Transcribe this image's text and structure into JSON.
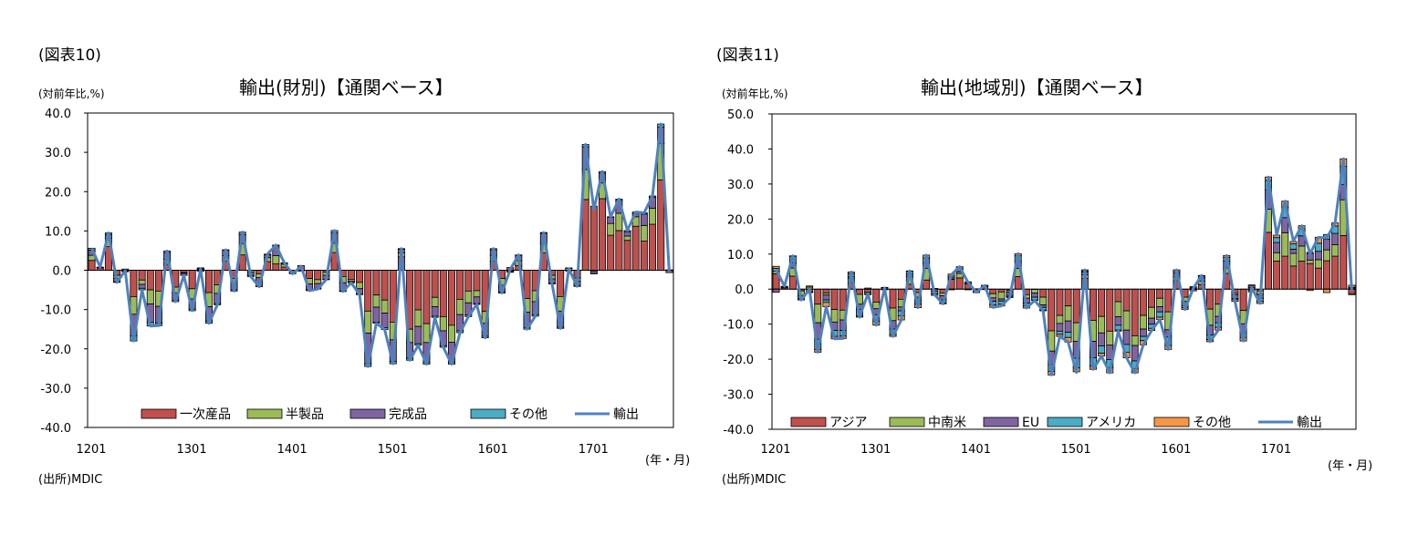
{
  "charts": [
    {
      "fig_label": "(図表10)",
      "title": "輸出(財別)【通関ベース】",
      "y_unit": "(対前年比,%)",
      "x_unit": "(年・月)",
      "source": "(出所)MDIC"
    },
    {
      "fig_label": "(図表11)",
      "title": "輸出(地域別)【通関ベース】",
      "y_unit": "(対前年比,%)",
      "x_unit": "(年・月)",
      "source": "(出所)MDIC"
    }
  ],
  "chart_data": [
    {
      "type": "bar",
      "stacked": true,
      "title": "輸出(財別)【通関ベース】",
      "ylabel": "(対前年比,%)",
      "xlabel": "(年・月)",
      "ylim": [
        -40,
        40
      ],
      "yticks": [
        40,
        30,
        20,
        10,
        0,
        -10,
        -20,
        -30,
        -40
      ],
      "ytick_labels": [
        "40.0",
        "30.0",
        "20.0",
        "10.0",
        "0.0",
        "-10.0",
        "-20.0",
        "-30.0",
        "-40.0"
      ],
      "xtick_labels": [
        "1201",
        "1301",
        "1401",
        "1501",
        "1601",
        "1701"
      ],
      "xtick_every": 12,
      "legend_position": "bottom",
      "colors": {
        "一次産品": "#C0504D",
        "半製品": "#9BBB59",
        "完成品": "#8064A2",
        "その他": "#4BACC6",
        "輸出": "#4F81BD"
      },
      "bar_series_names": [
        "一次産品",
        "半製品",
        "完成品",
        "その他"
      ],
      "line_series_name": "輸出",
      "total": [
        5.6,
        0.8,
        9.5,
        -3.1,
        -0.1,
        -18.0,
        -5.0,
        -14.2,
        -14.1,
        4.9,
        -8.0,
        -1.3,
        -10.3,
        0.3,
        -13.5,
        -8.8,
        5.2,
        -5.3,
        9.7,
        -1.6,
        -4.2,
        4.1,
        6.4,
        1.9,
        -0.9,
        1.0,
        -5.2,
        -4.8,
        -2.4,
        10.1,
        -5.4,
        -3.2,
        -6.2,
        -24.5,
        -13.5,
        -15.1,
        -23.8,
        5.5,
        -22.9,
        -19.1,
        -23.9,
        -12.0,
        -19.6,
        -23.9,
        -15.9,
        -11.8,
        -8.7,
        -17.2,
        5.5,
        -5.8,
        0.2,
        3.9,
        -15.0,
        -11.7,
        9.6,
        -3.5,
        -14.8,
        0.4,
        -4.1,
        32.0,
        15.4,
        25.1,
        13.6,
        18.1,
        10.1,
        14.8,
        14.6,
        18.9,
        37.2,
        -0.5
      ],
      "series": [
        {
          "name": "一次産品",
          "values": [
            2.5,
            0.6,
            6.0,
            -1.3,
            0.3,
            -6.7,
            -2.5,
            -5.0,
            -5.3,
            1.5,
            -4.3,
            -0.6,
            -4.7,
            -0.3,
            -5.7,
            -3.7,
            2.3,
            -2.1,
            3.9,
            0.0,
            -0.9,
            2.2,
            1.6,
            0.8,
            -0.6,
            1.2,
            -2.1,
            -2.4,
            -0.5,
            4.5,
            -1.6,
            -2.3,
            -3.1,
            -10.4,
            -6.3,
            -7.6,
            -13.2,
            3.4,
            -15.0,
            -10.1,
            -13.6,
            -6.9,
            -11.8,
            -14.0,
            -7.4,
            -5.3,
            -5.2,
            -10.5,
            2.3,
            -2.1,
            0.7,
            1.2,
            -7.2,
            -5.2,
            4.4,
            -1.3,
            -6.7,
            0.0,
            -2.0,
            18.0,
            16.3,
            18.2,
            8.9,
            10.1,
            7.6,
            11.2,
            7.4,
            11.7,
            23.0,
            -0.6
          ]
        },
        {
          "name": "半製品",
          "values": [
            1.3,
            0.1,
            2.1,
            -0.8,
            -0.2,
            -4.5,
            -1.1,
            -3.6,
            -3.9,
            1.3,
            -1.5,
            -0.2,
            -2.6,
            0.2,
            -3.6,
            -2.2,
            1.4,
            -1.3,
            2.8,
            -0.5,
            -1.0,
            1.0,
            2.1,
            0.7,
            -0.3,
            -0.1,
            -1.4,
            -1.0,
            -0.8,
            2.4,
            -1.6,
            -0.5,
            -1.6,
            -5.6,
            -3.1,
            -3.3,
            -4.5,
            1.0,
            -3.4,
            -4.2,
            -4.8,
            -2.4,
            -3.6,
            -4.3,
            -3.9,
            -3.0,
            -1.6,
            -3.0,
            1.5,
            -1.7,
            -0.2,
            1.2,
            -3.5,
            -2.8,
            2.4,
            -0.9,
            -3.7,
            0.5,
            -0.8,
            7.6,
            -0.2,
            4.0,
            3.0,
            4.4,
            1.1,
            2.4,
            4.0,
            4.1,
            9.2,
            0.0
          ]
        },
        {
          "name": "完成品",
          "values": [
            1.3,
            0.0,
            1.0,
            -0.8,
            -0.2,
            -5.5,
            -1.0,
            -4.6,
            -4.2,
            1.7,
            -1.8,
            -0.5,
            -2.6,
            0.3,
            -3.6,
            -2.6,
            1.4,
            -1.6,
            2.4,
            -0.8,
            -2.3,
            0.7,
            2.5,
            0.3,
            0.0,
            -0.1,
            -1.5,
            -1.2,
            -1.0,
            2.6,
            -2.1,
            -0.3,
            -1.4,
            -7.8,
            -3.8,
            -3.7,
            -5.5,
            0.9,
            -4.0,
            -4.4,
            -5.0,
            -2.4,
            -3.8,
            -5.1,
            -4.1,
            -3.1,
            -1.7,
            -3.3,
            1.4,
            -1.8,
            -0.2,
            1.4,
            -3.9,
            -3.3,
            2.6,
            -1.1,
            -4.1,
            -0.2,
            -1.2,
            5.8,
            -0.6,
            2.5,
            1.6,
            3.3,
            1.1,
            0.9,
            2.9,
            2.8,
            4.2,
            0.1
          ]
        },
        {
          "name": "その他",
          "values": [
            0.5,
            0.1,
            0.4,
            -0.2,
            0.0,
            -1.3,
            -0.4,
            -1.0,
            -0.7,
            0.4,
            -0.4,
            0.0,
            -0.4,
            0.1,
            -0.6,
            -0.3,
            0.1,
            -0.3,
            0.6,
            -0.3,
            0.0,
            0.2,
            0.2,
            0.1,
            0.0,
            0.0,
            -0.2,
            -0.2,
            -0.1,
            0.6,
            -0.1,
            -0.1,
            -0.1,
            -0.7,
            -0.3,
            -0.5,
            -0.6,
            0.2,
            -0.5,
            -0.4,
            -0.5,
            -0.3,
            -0.4,
            -0.5,
            -0.5,
            -0.4,
            -0.2,
            -0.4,
            0.3,
            -0.2,
            -0.1,
            0.1,
            -0.4,
            -0.4,
            0.2,
            -0.2,
            -0.3,
            0.1,
            -0.1,
            0.6,
            -0.1,
            0.4,
            0.1,
            0.3,
            0.3,
            0.3,
            0.3,
            0.3,
            0.8,
            0.0
          ]
        }
      ]
    },
    {
      "type": "bar",
      "stacked": true,
      "title": "輸出(地域別)【通関ベース】",
      "ylabel": "(対前年比,%)",
      "xlabel": "(年・月)",
      "ylim": [
        -40,
        50
      ],
      "yticks": [
        50,
        40,
        30,
        20,
        10,
        0,
        -10,
        -20,
        -30,
        -40
      ],
      "ytick_labels": [
        "50.0",
        "40.0",
        "30.0",
        "20.0",
        "10.0",
        "0.0",
        "-10.0",
        "-20.0",
        "-30.0",
        "-40.0"
      ],
      "xtick_labels": [
        "1201",
        "1301",
        "1401",
        "1501",
        "1601",
        "1701"
      ],
      "xtick_every": 12,
      "legend_position": "bottom",
      "colors": {
        "アジア": "#C0504D",
        "中南米": "#9BBB59",
        "EU": "#8064A2",
        "アメリカ": "#4BACC6",
        "その他": "#F79646",
        "輸出": "#4F81BD"
      },
      "bar_series_names": [
        "アジア",
        "中南米",
        "EU",
        "アメリカ",
        "その他"
      ],
      "line_series_name": "輸出",
      "total": [
        5.6,
        0.8,
        9.5,
        -3.1,
        -0.1,
        -18.0,
        -5.0,
        -14.2,
        -14.1,
        4.9,
        -8.0,
        -1.3,
        -10.3,
        0.3,
        -13.5,
        -8.8,
        5.2,
        -5.3,
        9.7,
        -1.6,
        -4.2,
        4.1,
        6.4,
        1.9,
        -0.9,
        1.0,
        -5.2,
        -4.8,
        -2.4,
        10.1,
        -5.4,
        -3.2,
        -6.2,
        -24.5,
        -13.5,
        -15.1,
        -23.8,
        5.5,
        -22.9,
        -19.1,
        -23.9,
        -12.0,
        -19.6,
        -23.9,
        -15.9,
        -11.8,
        -8.7,
        -17.2,
        5.5,
        -5.8,
        0.2,
        3.9,
        -15.0,
        -11.7,
        9.6,
        -3.5,
        -14.8,
        0.4,
        -4.1,
        32.0,
        15.4,
        25.1,
        13.6,
        18.1,
        10.1,
        14.8,
        14.6,
        18.9,
        37.2,
        -0.5
      ],
      "series": [
        {
          "name": "アジア",
          "values": [
            4.4,
            0.4,
            3.7,
            -0.5,
            -0.8,
            -4.3,
            -1.1,
            -5.8,
            -6.0,
            1.8,
            -1.5,
            -0.9,
            -3.7,
            0.0,
            -5.4,
            -2.9,
            1.4,
            -1.0,
            2.6,
            0.1,
            -1.1,
            2.8,
            3.2,
            1.5,
            0.0,
            0.9,
            -1.3,
            -0.8,
            -0.4,
            3.6,
            -1.6,
            -0.1,
            -2.3,
            -11.9,
            -7.5,
            -4.8,
            -9.6,
            3.1,
            -8.9,
            -7.8,
            -12.0,
            -3.6,
            -6.2,
            -13.3,
            -7.5,
            -5.2,
            -2.6,
            -6.5,
            2.4,
            -2.3,
            -0.5,
            1.3,
            -5.7,
            -4.3,
            4.5,
            -1.2,
            -6.1,
            0.5,
            -0.5,
            16.2,
            8.0,
            9.4,
            6.6,
            8.0,
            7.3,
            6.0,
            8.1,
            9.4,
            15.3,
            -1.3
          ]
        },
        {
          "name": "中南米",
          "values": [
            0.7,
            0.1,
            2.3,
            -1.3,
            0.6,
            -5.3,
            -0.6,
            -3.6,
            -2.8,
            1.3,
            -2.8,
            0.3,
            -1.9,
            0.4,
            -3.6,
            -2.2,
            2.2,
            -1.3,
            3.3,
            -0.5,
            -0.8,
            -0.2,
            1.3,
            0.2,
            0.1,
            -0.1,
            -1.2,
            -2.0,
            -0.5,
            2.3,
            -1.0,
            -1.0,
            -2.2,
            -5.8,
            -2.3,
            -4.3,
            -5.3,
            1.0,
            -6.0,
            -4.7,
            -4.0,
            -4.3,
            -5.5,
            -2.8,
            -3.9,
            -3.1,
            -2.4,
            -5.1,
            1.1,
            -1.2,
            0.2,
            1.0,
            -4.6,
            -3.5,
            1.5,
            -0.4,
            -3.8,
            -0.4,
            -1.0,
            6.6,
            2.4,
            6.7,
            3.6,
            4.3,
            1.0,
            2.4,
            3.1,
            3.3,
            10.2,
            -0.3
          ]
        },
        {
          "name": "EU",
          "values": [
            -0.9,
            0.2,
            1.5,
            -1.0,
            0.0,
            -4.7,
            -1.4,
            -2.4,
            -3.0,
            0.5,
            -1.5,
            0.0,
            -1.7,
            -0.2,
            -2.4,
            -1.1,
            0.7,
            -1.1,
            1.6,
            -0.9,
            -1.2,
            0.4,
            0.6,
            0.4,
            -0.6,
            0.1,
            -1.0,
            -0.6,
            -0.9,
            2.0,
            -1.4,
            -1.2,
            -0.7,
            -3.8,
            -2.2,
            -3.2,
            -4.8,
            0.8,
            -4.7,
            -3.7,
            -4.1,
            -2.4,
            -4.1,
            -4.4,
            -2.1,
            -1.7,
            -1.5,
            -2.1,
            1.0,
            -1.3,
            0.3,
            0.9,
            -2.8,
            -1.8,
            2.0,
            -1.1,
            -2.5,
            0.6,
            -1.1,
            5.5,
            2.9,
            4.3,
            1.2,
            2.9,
            1.9,
            2.4,
            3.0,
            3.2,
            4.4,
            0.3
          ]
        },
        {
          "name": "アメリカ",
          "values": [
            0.8,
            0.1,
            1.9,
            -0.3,
            -0.2,
            -2.9,
            -0.7,
            -1.7,
            -1.6,
            0.8,
            -1.9,
            -0.4,
            -1.9,
            0.0,
            -1.6,
            -1.4,
            0.8,
            -0.9,
            1.4,
            -0.4,
            -0.9,
            0.5,
            0.9,
            0.0,
            -0.4,
            0.1,
            -1.0,
            -0.9,
            -0.4,
            1.6,
            -0.7,
            -0.8,
            -0.8,
            -2.0,
            -0.9,
            -1.5,
            -2.8,
            0.3,
            -2.4,
            -2.1,
            -2.3,
            -1.4,
            -2.2,
            -2.2,
            -1.2,
            -1.2,
            -1.5,
            -2.4,
            0.5,
            -0.5,
            0.2,
            0.5,
            -1.3,
            -1.3,
            1.0,
            -0.3,
            -1.4,
            -0.4,
            -0.9,
            2.7,
            1.4,
            3.0,
            1.5,
            2.0,
            0.3,
            2.3,
            1.4,
            2.1,
            5.1,
            0.2
          ]
        },
        {
          "name": "その他",
          "values": [
            0.6,
            0.0,
            0.1,
            0.0,
            0.3,
            -0.8,
            -1.2,
            -0.7,
            -0.7,
            0.5,
            -0.3,
            -0.3,
            -1.1,
            0.1,
            -0.5,
            -1.2,
            0.1,
            -1.0,
            0.8,
            0.1,
            -0.2,
            0.6,
            0.4,
            -0.2,
            0.0,
            0.0,
            -0.7,
            -0.5,
            -0.2,
            0.6,
            -0.7,
            -0.1,
            -0.2,
            -1.0,
            -0.6,
            -1.3,
            -1.1,
            0.3,
            -0.9,
            -0.8,
            -1.5,
            -0.3,
            -1.6,
            -1.2,
            -1.2,
            -0.6,
            -0.7,
            -1.1,
            0.5,
            -0.5,
            0.0,
            0.2,
            -0.6,
            -0.8,
            0.6,
            -0.5,
            -1.0,
            0.1,
            -0.6,
            1.0,
            0.7,
            1.7,
            0.7,
            0.9,
            -0.4,
            1.7,
            -1.0,
            0.9,
            2.2,
            0.6
          ]
        }
      ]
    }
  ]
}
